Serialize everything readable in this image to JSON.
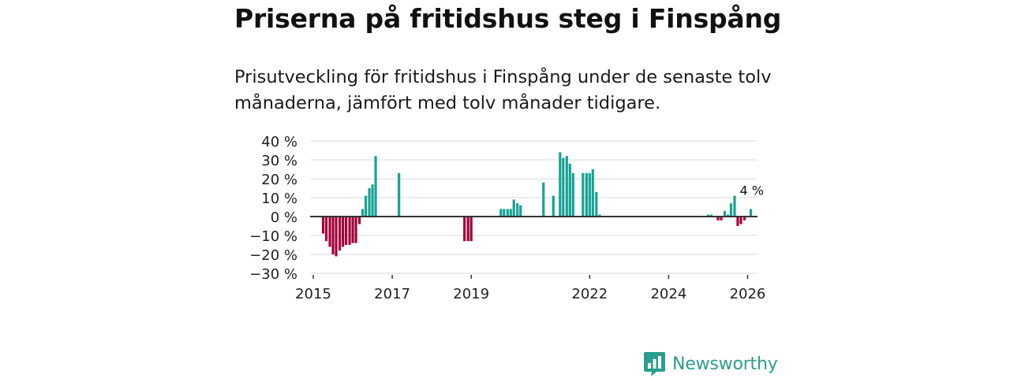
{
  "header": {
    "title": "Priserna på fritidshus steg i Finspång",
    "subtitle": "Prisutveckling för fritidshus i Finspång under de senaste tolv månaderna, jämfört med tolv månader tidigare."
  },
  "brand": {
    "name": "Newsworthy",
    "color": "#2a9d8f"
  },
  "colors": {
    "positive": "#16a394",
    "negative": "#a3003a",
    "zero_line": "#333333",
    "grid": "#d9d9d9"
  },
  "chart_data": {
    "type": "bar",
    "title": "Priserna på fritidshus steg i Finspång",
    "xlabel": "",
    "ylabel": "",
    "ylim": [
      -30,
      40
    ],
    "yticks": [
      40,
      30,
      20,
      10,
      0,
      -10,
      -20,
      -30
    ],
    "ytick_labels": [
      "40 %",
      "30 %",
      "20 %",
      "10 %",
      "0 %",
      "−10 %",
      "−20 %",
      "−30 %"
    ],
    "xlim": [
      2014.92,
      2026.25
    ],
    "xticks": [
      2015,
      2017,
      2019,
      2022,
      2024,
      2026
    ],
    "xtick_labels": [
      "2015",
      "2017",
      "2019",
      "2022",
      "2024",
      "2026"
    ],
    "annotation": {
      "text": "4 %",
      "x": 2026.08,
      "y": 4
    },
    "x": [
      2015.25,
      2015.33,
      2015.42,
      2015.5,
      2015.58,
      2015.67,
      2015.75,
      2015.83,
      2015.92,
      2016.0,
      2016.08,
      2016.17,
      2016.25,
      2016.33,
      2016.42,
      2016.5,
      2016.58,
      2016.67,
      2017.17,
      2018.83,
      2018.92,
      2019.0,
      2019.75,
      2019.83,
      2019.92,
      2020.0,
      2020.08,
      2020.17,
      2020.25,
      2020.83,
      2021.08,
      2021.25,
      2021.33,
      2021.42,
      2021.5,
      2021.58,
      2021.83,
      2021.92,
      2022.0,
      2022.08,
      2022.17,
      2022.25,
      2025.0,
      2025.08,
      2025.25,
      2025.33,
      2025.42,
      2025.5,
      2025.58,
      2025.67,
      2025.75,
      2025.83,
      2025.92,
      2026.0,
      2026.08
    ],
    "values": [
      -9,
      -13,
      -16,
      -20,
      -21,
      -18,
      -16,
      -15,
      -15,
      -14,
      -14,
      -4,
      4,
      11,
      15,
      17,
      32,
      0,
      23,
      -13,
      -13,
      -13,
      4,
      4,
      4,
      4,
      9,
      7,
      6,
      18,
      11,
      34,
      31,
      32,
      28,
      23,
      23,
      23,
      23,
      25,
      13,
      1,
      1,
      1,
      -2,
      -2,
      3,
      1,
      7,
      11,
      -5,
      -4,
      -2,
      0,
      4
    ]
  }
}
